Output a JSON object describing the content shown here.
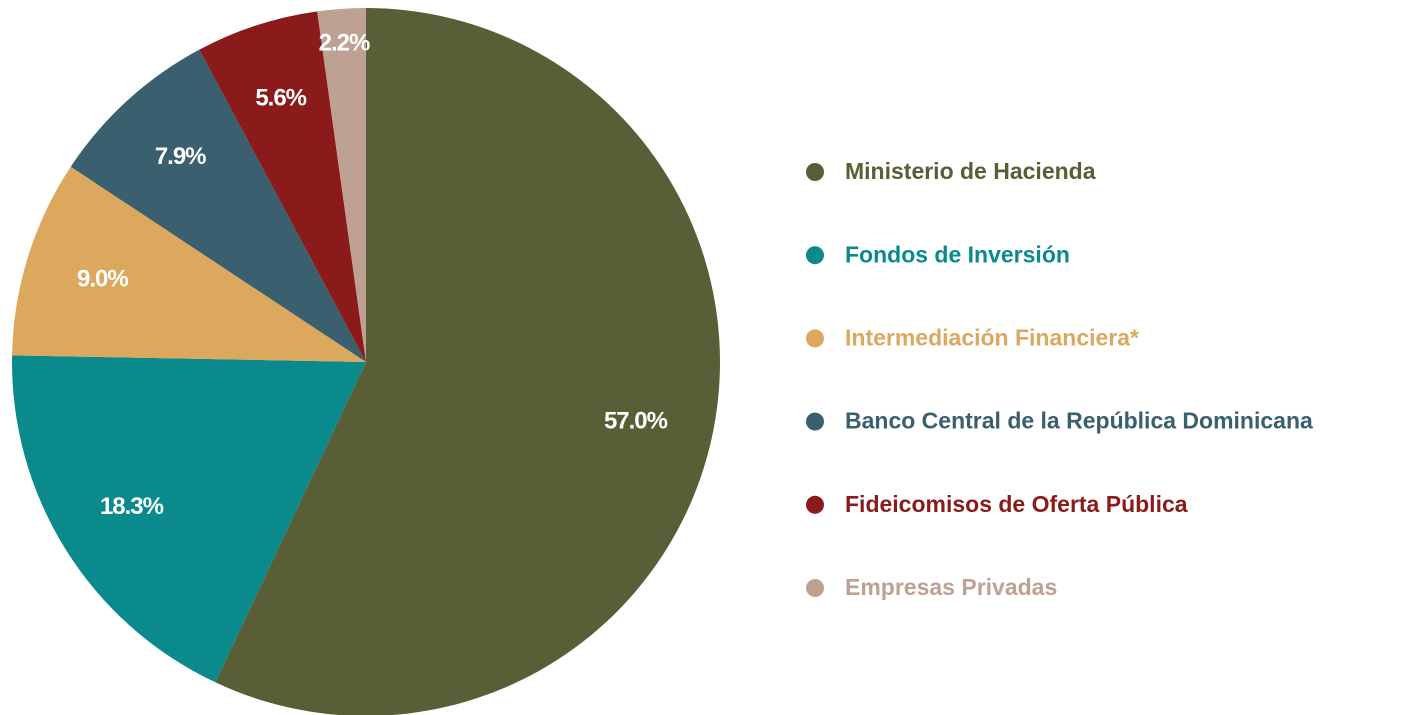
{
  "chart_data": {
    "type": "pie",
    "categories": [
      "Ministerio de Hacienda",
      "Fondos de Inversión",
      "Intermediación Financiera*",
      "Banco Central de la República Dominicana",
      "Fideicomisos de Oferta Pública",
      "Empresas Privadas"
    ],
    "values": [
      57.0,
      18.3,
      9.0,
      7.9,
      5.6,
      2.2
    ],
    "value_labels": [
      "57.0%",
      "18.3%",
      "9.0%",
      "7.9%",
      "5.6%",
      "2.2%"
    ],
    "colors": [
      "#5a5e36",
      "#0a8a8c",
      "#dba85e",
      "#3a5f6e",
      "#8b1a1a",
      "#bfa193"
    ],
    "legend": "right"
  }
}
